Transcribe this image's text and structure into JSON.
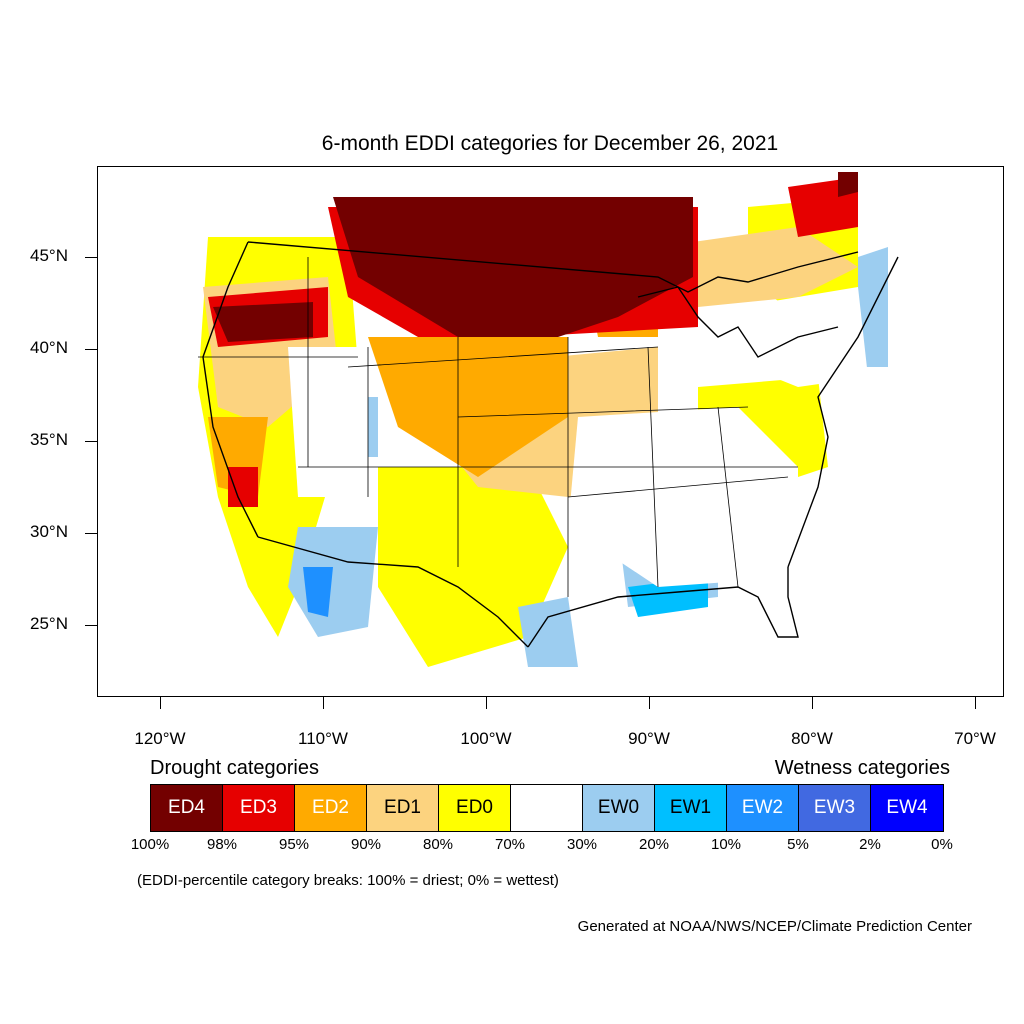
{
  "title": "6-month EDDI categories for December 26, 2021",
  "axes": {
    "y_labels": [
      "45°N",
      "40°N",
      "35°N",
      "30°N",
      "25°N"
    ],
    "x_labels": [
      "120°W",
      "110°W",
      "100°W",
      "90°W",
      "80°W",
      "70°W"
    ]
  },
  "legend": {
    "drought_heading": "Drought categories",
    "wetness_heading": "Wetness categories",
    "categories": [
      {
        "label": "ED4",
        "color": "#730000",
        "text_color": "#ffffff"
      },
      {
        "label": "ED3",
        "color": "#e60000",
        "text_color": "#ffffff"
      },
      {
        "label": "ED2",
        "color": "#ffaa00",
        "text_color": "#ffffff"
      },
      {
        "label": "ED1",
        "color": "#fcd37f",
        "text_color": "#000000"
      },
      {
        "label": "ED0",
        "color": "#ffff00",
        "text_color": "#000000"
      },
      {
        "label": "",
        "color": "#ffffff",
        "text_color": "#000000"
      },
      {
        "label": "EW0",
        "color": "#9ccdf0",
        "text_color": "#000000"
      },
      {
        "label": "EW1",
        "color": "#00bfff",
        "text_color": "#000000"
      },
      {
        "label": "EW2",
        "color": "#1e90ff",
        "text_color": "#ffffff"
      },
      {
        "label": "EW3",
        "color": "#4169e1",
        "text_color": "#ffffff"
      },
      {
        "label": "EW4",
        "color": "#0000ff",
        "text_color": "#ffffff"
      }
    ],
    "breaks": [
      "100%",
      "98%",
      "95%",
      "90%",
      "80%",
      "70%",
      "30%",
      "20%",
      "10%",
      "5%",
      "2%",
      "0%"
    ]
  },
  "note": "(EDDI-percentile category breaks: 100% = driest; 0% = wettest)",
  "credit": "Generated at NOAA/NWS/NCEP/Climate Prediction Center"
}
